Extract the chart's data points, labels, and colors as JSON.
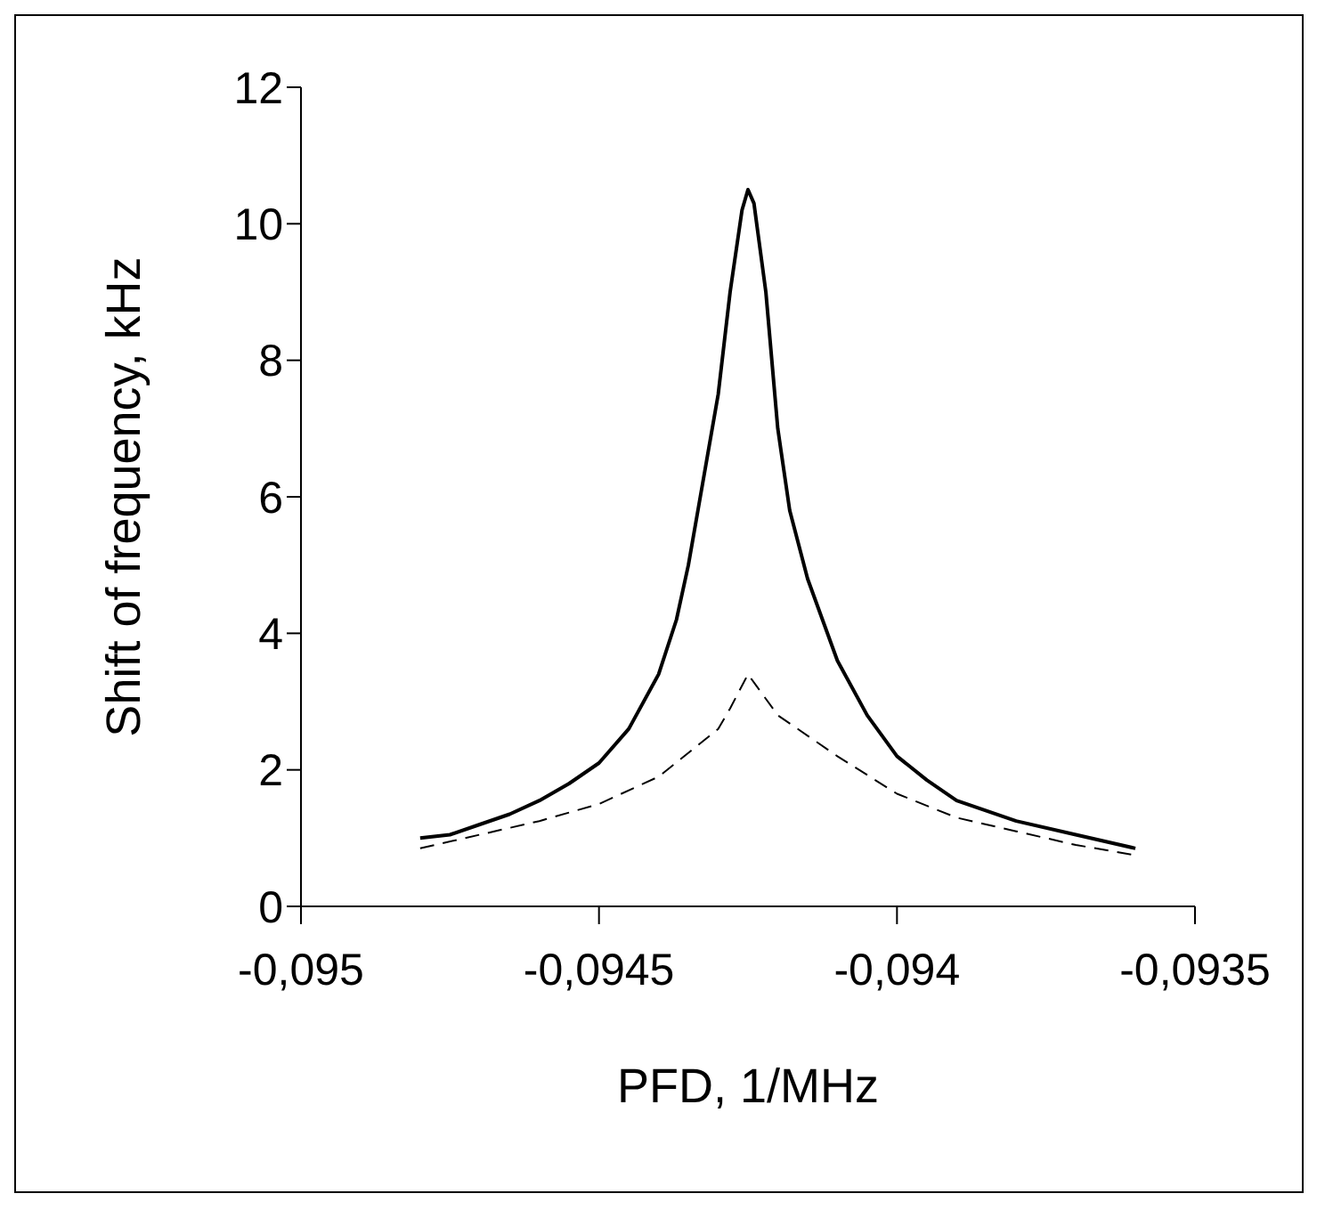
{
  "chart_data": {
    "type": "line",
    "xlabel": "PFD, 1/MHz",
    "ylabel": "Shift of frequency, kHz",
    "xlim": [
      -0.095,
      -0.0935
    ],
    "xticks": [
      {
        "value": -0.095,
        "label": "-0,095"
      },
      {
        "value": -0.0945,
        "label": "-0,0945"
      },
      {
        "value": -0.094,
        "label": "-0,094"
      },
      {
        "value": -0.0935,
        "label": "-0,0935"
      }
    ],
    "ylim": [
      0,
      12
    ],
    "yticks": [
      0,
      2,
      4,
      6,
      8,
      10,
      12
    ],
    "grid": false,
    "legend": false,
    "marker": "none",
    "series": [
      {
        "color": "#000000",
        "line_style": "solid",
        "x": [
          -0.0948,
          -0.09475,
          -0.0947,
          -0.09465,
          -0.0946,
          -0.09455,
          -0.0945,
          -0.09445,
          -0.0944,
          -0.09437,
          -0.09435,
          -0.09433,
          -0.0943,
          -0.09428,
          -0.09426,
          -0.09425,
          -0.09424,
          -0.09422,
          -0.0942,
          -0.09418,
          -0.09415,
          -0.0941,
          -0.09405,
          -0.094,
          -0.09395,
          -0.0939,
          -0.09385,
          -0.0938,
          -0.0937,
          -0.0936
        ],
        "values": [
          1.0,
          1.05,
          1.2,
          1.35,
          1.55,
          1.8,
          2.1,
          2.6,
          3.4,
          4.2,
          5.0,
          6.0,
          7.5,
          9.0,
          10.2,
          10.5,
          10.3,
          9.0,
          7.0,
          5.8,
          4.8,
          3.6,
          2.8,
          2.2,
          1.85,
          1.55,
          1.4,
          1.25,
          1.05,
          0.85
        ]
      },
      {
        "color": "#000000",
        "line_style": "dashed",
        "x": [
          -0.0948,
          -0.0947,
          -0.0946,
          -0.0945,
          -0.0944,
          -0.0943,
          -0.09428,
          -0.09425,
          -0.0942,
          -0.0941,
          -0.094,
          -0.0939,
          -0.0938,
          -0.0937,
          -0.0936
        ],
        "values": [
          0.85,
          1.05,
          1.25,
          1.5,
          1.9,
          2.6,
          2.9,
          3.4,
          2.8,
          2.2,
          1.65,
          1.3,
          1.1,
          0.9,
          0.75
        ]
      }
    ]
  }
}
